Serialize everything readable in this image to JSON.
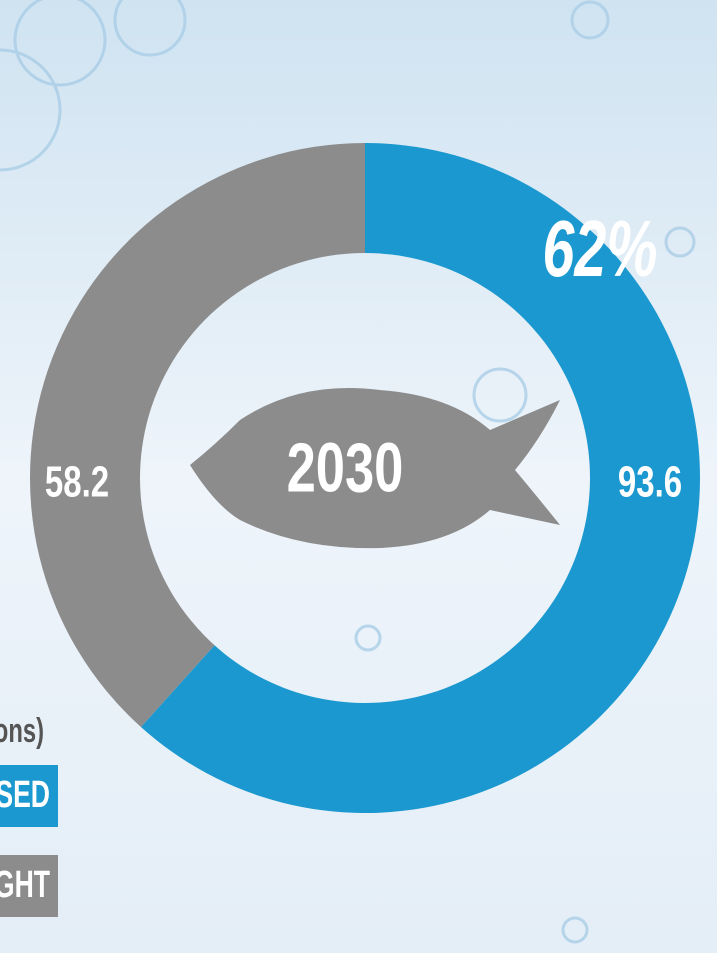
{
  "chart_data": {
    "type": "donut",
    "categories": [
      "SED",
      "GHT"
    ],
    "values": [
      93.6,
      58.2
    ],
    "colors": [
      "#1a98cf",
      "#8c8c8c"
    ],
    "legend_title": "ons)",
    "center_label": "2030",
    "percent_label": "62%"
  }
}
